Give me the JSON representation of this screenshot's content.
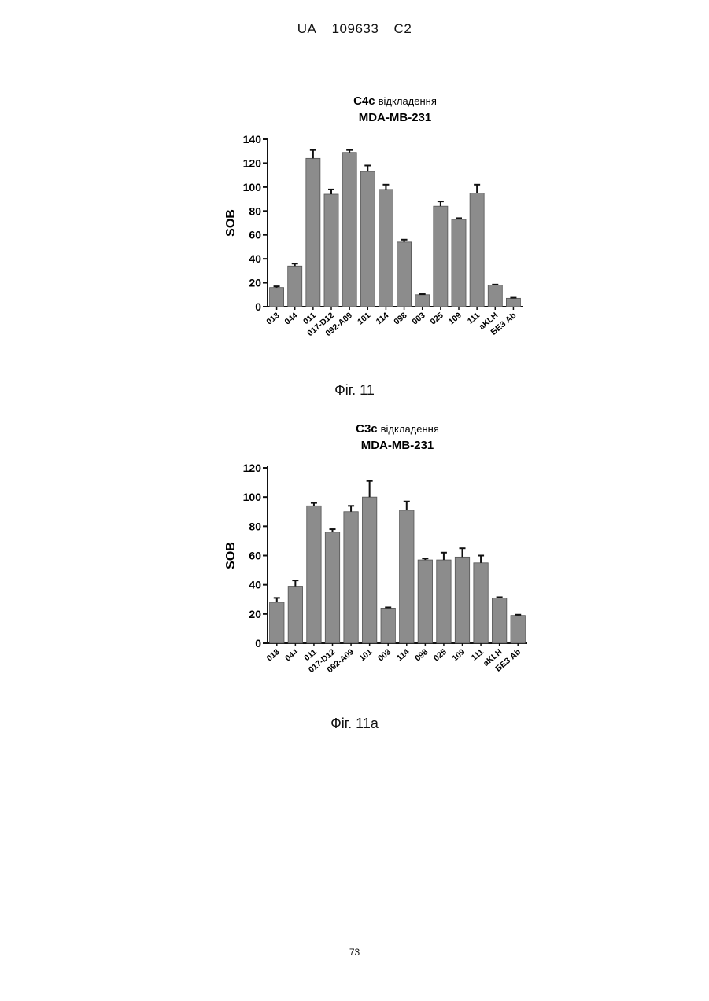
{
  "header": {
    "country": "UA",
    "number": "109633",
    "kind": "C2"
  },
  "figures": [
    {
      "caption": "Фіг. 11"
    },
    {
      "caption": "Фіг. 11a"
    }
  ],
  "page_number": "73",
  "colors": {
    "bar": "#8c8c8c",
    "axis": "#111111"
  },
  "chart_data": [
    {
      "type": "bar",
      "title_bold": "C4c",
      "title_rest": "відкладення",
      "subtitle": "MDA-MB-231",
      "ylabel": "SOB",
      "xlabel": "",
      "ylim": [
        0,
        140
      ],
      "yticks": [
        0,
        20,
        40,
        60,
        80,
        100,
        120,
        140
      ],
      "categories": [
        "013",
        "044",
        "011",
        "017-D12",
        "092-A09",
        "101",
        "114",
        "098",
        "003",
        "025",
        "109",
        "111",
        "aKLH",
        "БЕЗ Ab"
      ],
      "values": [
        16,
        34,
        124,
        94,
        129,
        113,
        98,
        54,
        10,
        84,
        73,
        95,
        18,
        7
      ],
      "errors": [
        1,
        2,
        7,
        4,
        2,
        5,
        4,
        2,
        0.5,
        4,
        1,
        7,
        0.5,
        0.5
      ]
    },
    {
      "type": "bar",
      "title_bold": "C3c",
      "title_rest": "відкладення",
      "subtitle": "MDA-MB-231",
      "ylabel": "SOB",
      "xlabel": "",
      "ylim": [
        0,
        120
      ],
      "yticks": [
        0,
        20,
        40,
        60,
        80,
        100,
        120
      ],
      "categories": [
        "013",
        "044",
        "011",
        "017-D12",
        "092-A09",
        "101",
        "003",
        "114",
        "098",
        "025",
        "109",
        "111",
        "aKLH",
        "БЕЗ Ab"
      ],
      "values": [
        28,
        39,
        94,
        76,
        90,
        100,
        24,
        91,
        57,
        57,
        59,
        55,
        31,
        19
      ],
      "errors": [
        3,
        4,
        2,
        2,
        4,
        11,
        0.5,
        6,
        1,
        5,
        6,
        5,
        0.5,
        0.5
      ]
    }
  ]
}
